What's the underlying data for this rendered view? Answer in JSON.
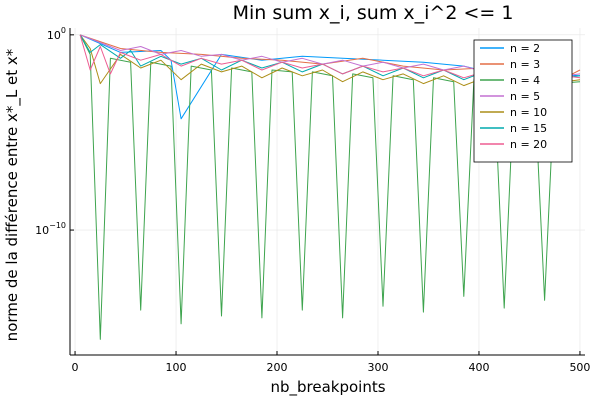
{
  "chart_data": {
    "type": "line",
    "title": "Min sum x_i, sum x_i^2 <= 1",
    "xlabel": "nb_breakpoints",
    "ylabel": "norme de la différence entre x*_L et x*",
    "xlim": [
      -5,
      505
    ],
    "x_ticks": [
      0,
      100,
      200,
      300,
      400,
      500
    ],
    "y_scale": "log10",
    "ylim_log10": [
      -16.4,
      0.35
    ],
    "y_ticks": [
      {
        "log10": 0,
        "base": "10",
        "exp": "0"
      },
      {
        "log10": -10,
        "base": "10",
        "exp": "−10"
      }
    ],
    "grid": true,
    "legend_position": "top-right",
    "series": [
      {
        "name": "n = 2",
        "color": "#009AFA",
        "x": [
          5,
          45,
          85,
          95,
          105,
          145,
          185,
          225,
          265,
          305,
          345,
          385,
          425,
          445,
          465,
          500
        ],
        "log10_y": [
          0,
          -0.9,
          -0.8,
          -1.3,
          -4.3,
          -1.0,
          -1.3,
          -1.1,
          -1.2,
          -1.3,
          -1.4,
          -1.6,
          -2.1,
          -1.5,
          -2.0,
          -2.1
        ]
      },
      {
        "name": "n = 3",
        "color": "#E36F47",
        "x": [
          5,
          45,
          85,
          125,
          165,
          205,
          245,
          285,
          325,
          365,
          405,
          445,
          485,
          500
        ],
        "log10_y": [
          0,
          -0.7,
          -0.9,
          -1.0,
          -1.2,
          -1.3,
          -1.5,
          -1.2,
          -1.6,
          -1.8,
          -1.7,
          -2.0,
          -2.2,
          -1.8
        ]
      },
      {
        "name": "n = 4",
        "color": "#3EA44E",
        "x": [
          5,
          15,
          25,
          35,
          55,
          65,
          75,
          95,
          105,
          115,
          135,
          145,
          155,
          175,
          185,
          195,
          215,
          225,
          235,
          255,
          265,
          275,
          295,
          305,
          315,
          335,
          345,
          355,
          375,
          385,
          395,
          415,
          425,
          435,
          455,
          465,
          475,
          500
        ],
        "log10_y": [
          0,
          -1.0,
          -15.6,
          -1.2,
          -1.4,
          -14.1,
          -1.4,
          -1.6,
          -14.8,
          -1.6,
          -1.8,
          -14.4,
          -1.7,
          -1.9,
          -14.5,
          -1.8,
          -1.9,
          -14.1,
          -1.9,
          -2.1,
          -14.5,
          -2.0,
          -2.2,
          -13.9,
          -2.1,
          -2.3,
          -14.2,
          -2.2,
          -2.4,
          -13.4,
          -2.3,
          -2.4,
          -14.0,
          -2.4,
          -2.6,
          -13.6,
          -2.5,
          -2.4
        ]
      },
      {
        "name": "n = 5",
        "color": "#C371D2",
        "x": [
          5,
          25,
          45,
          65,
          85,
          105,
          125,
          145,
          165,
          185,
          205,
          225,
          245,
          265,
          285,
          305,
          325,
          345,
          365,
          385,
          405,
          425,
          445,
          465,
          485,
          500
        ],
        "log10_y": [
          0,
          -0.4,
          -0.8,
          -0.6,
          -1.0,
          -0.8,
          -1.1,
          -1.0,
          -1.3,
          -1.1,
          -1.4,
          -1.2,
          -1.5,
          -1.3,
          -1.6,
          -1.4,
          -1.7,
          -1.5,
          -1.8,
          -1.6,
          -1.9,
          -1.8,
          -2.0,
          -1.9,
          -2.1,
          -2.0
        ]
      },
      {
        "name": "n = 10",
        "color": "#AC8E18",
        "x": [
          5,
          15,
          25,
          45,
          65,
          85,
          105,
          125,
          145,
          165,
          185,
          205,
          225,
          245,
          265,
          285,
          305,
          325,
          345,
          365,
          385,
          405,
          425,
          445,
          465,
          485,
          500
        ],
        "log10_y": [
          0,
          -0.7,
          -2.5,
          -1.0,
          -1.7,
          -1.3,
          -2.3,
          -1.5,
          -1.9,
          -1.6,
          -2.2,
          -1.7,
          -2.1,
          -1.8,
          -2.4,
          -1.9,
          -2.3,
          -2.0,
          -2.5,
          -2.1,
          -2.6,
          -2.2,
          -2.7,
          -2.3,
          -2.6,
          -2.4,
          -2.3
        ]
      },
      {
        "name": "n = 15",
        "color": "#00AAAE",
        "x": [
          5,
          15,
          25,
          45,
          55,
          65,
          85,
          105,
          125,
          145,
          165,
          185,
          205,
          225,
          245,
          265,
          285,
          305,
          325,
          345,
          365,
          385,
          405,
          425,
          445,
          465,
          485,
          500
        ],
        "log10_y": [
          0,
          -0.9,
          -0.5,
          -1.2,
          -0.8,
          -1.6,
          -1.1,
          -1.5,
          -1.2,
          -1.8,
          -1.3,
          -1.7,
          -1.4,
          -1.9,
          -1.5,
          -2.0,
          -1.6,
          -2.1,
          -1.7,
          -2.2,
          -1.8,
          -2.3,
          -1.9,
          -2.4,
          -2.0,
          -3.7,
          -2.2,
          -2.1
        ]
      },
      {
        "name": "n = 20",
        "color": "#ED5D92",
        "x": [
          5,
          15,
          25,
          35,
          45,
          65,
          85,
          105,
          125,
          145,
          165,
          185,
          205,
          225,
          245,
          265,
          285,
          305,
          325,
          345,
          365,
          385,
          405,
          425,
          445,
          465,
          485,
          500
        ],
        "log10_y": [
          0,
          -1.8,
          -0.6,
          -2.0,
          -0.9,
          -1.3,
          -1.0,
          -1.6,
          -1.2,
          -1.5,
          -1.3,
          -1.8,
          -1.4,
          -1.7,
          -1.5,
          -2.0,
          -1.6,
          -1.9,
          -1.7,
          -2.1,
          -1.8,
          -2.2,
          -1.9,
          -2.3,
          -2.0,
          -2.4,
          -2.1,
          -2.2
        ]
      }
    ]
  }
}
